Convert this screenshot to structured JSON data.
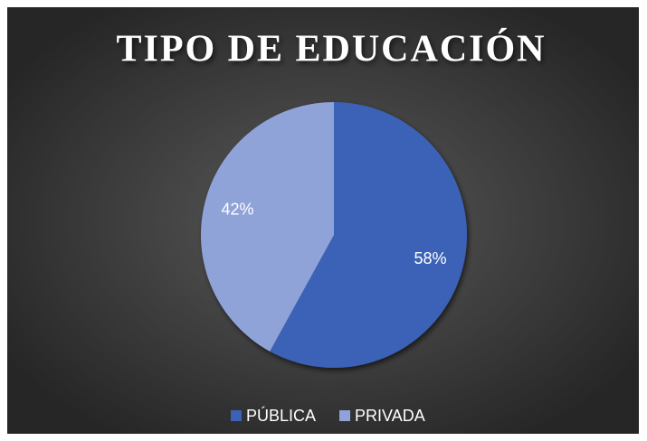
{
  "chart_data": {
    "type": "pie",
    "title": "TIPO DE EDUCACIÓN",
    "categories": [
      "PÚBLICA",
      "PRIVADA"
    ],
    "values": [
      58,
      42
    ],
    "value_labels": [
      "58%",
      "42%"
    ],
    "colors": [
      "#3b62b6",
      "#8fa3d8"
    ],
    "legend": "bottom"
  }
}
